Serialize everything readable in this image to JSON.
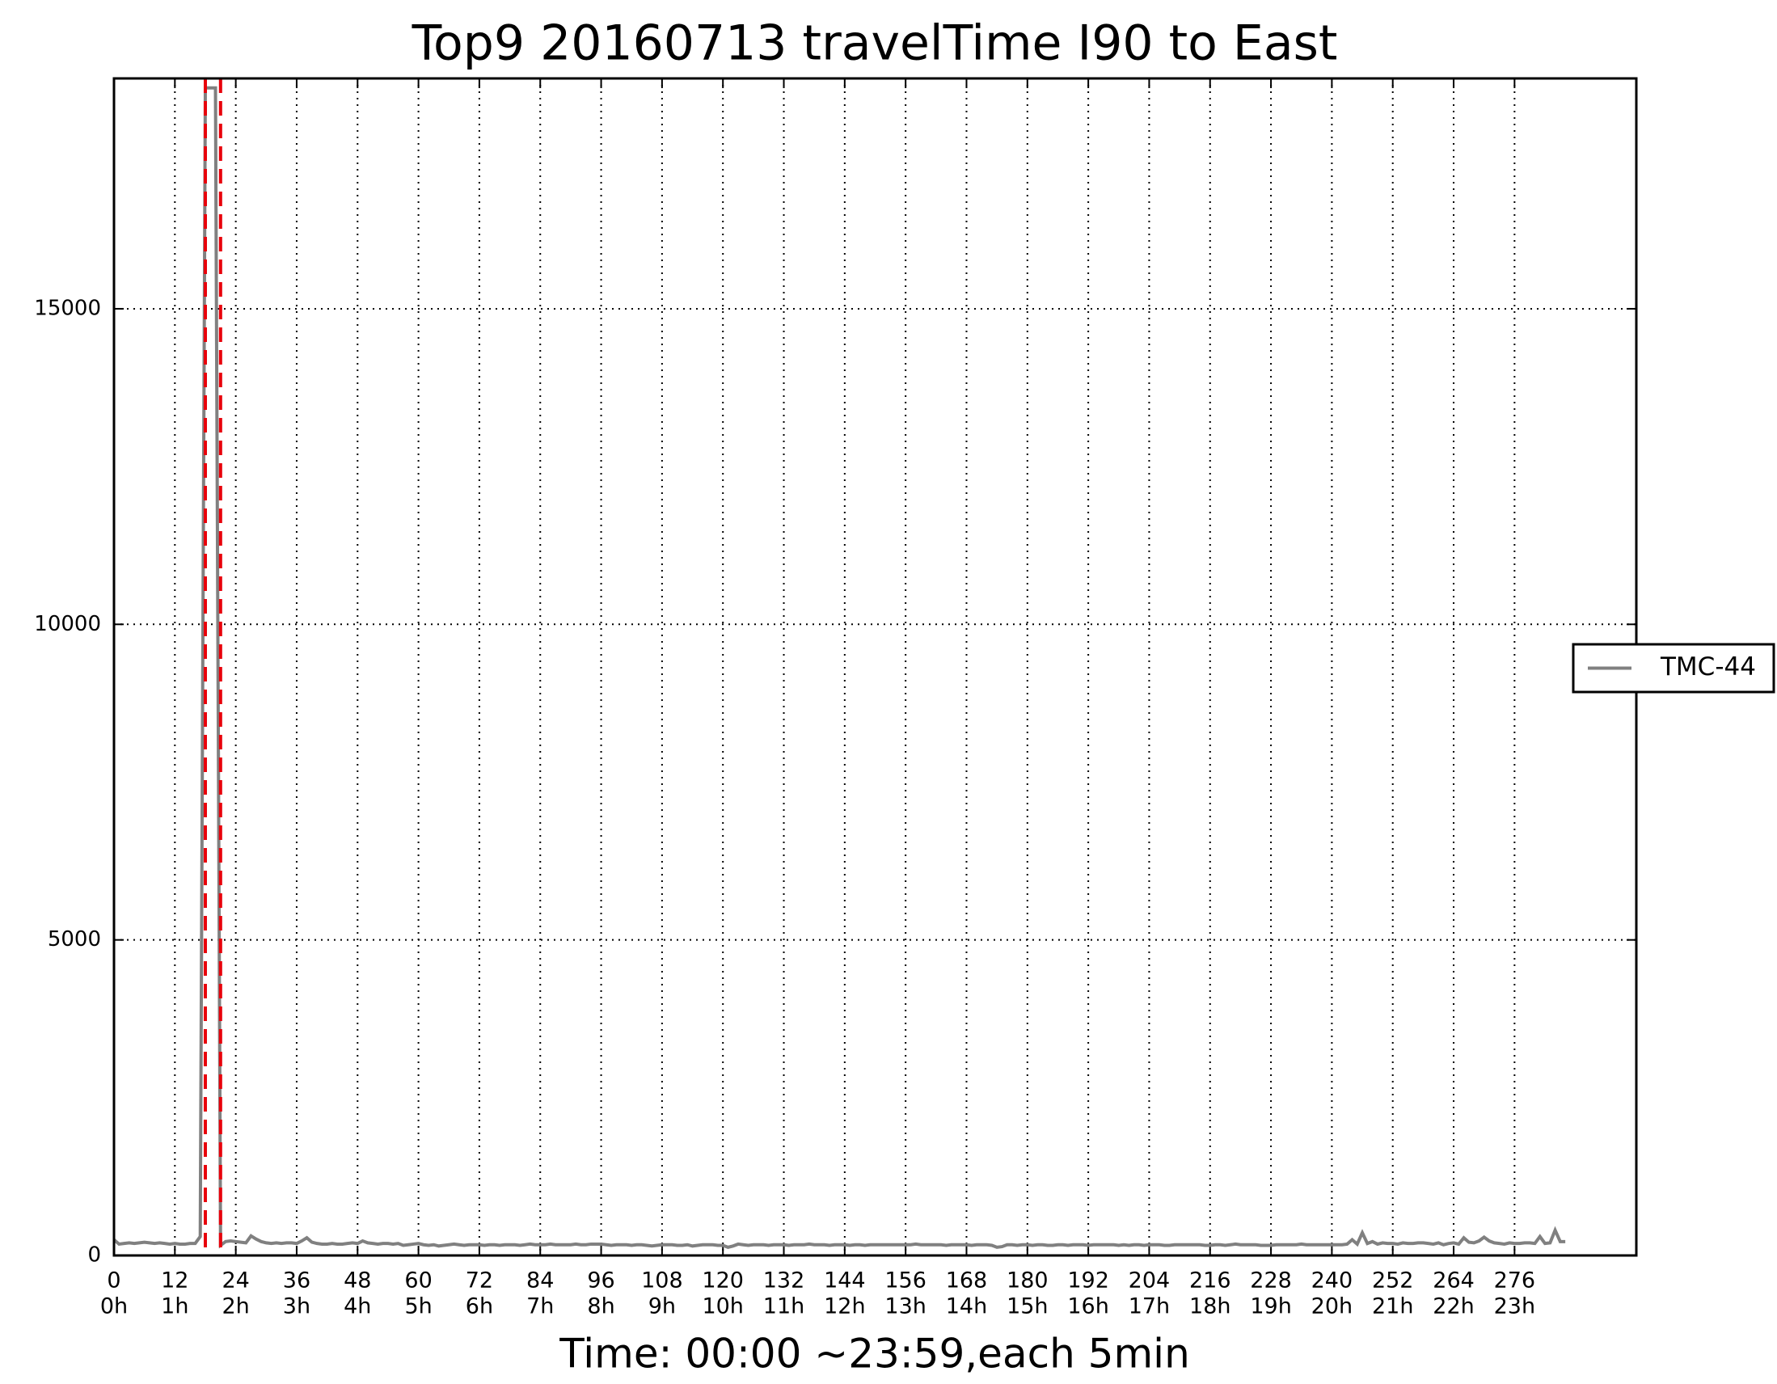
{
  "chart_data": {
    "type": "line",
    "title": "Top9 20160713 travelTime I90 to East",
    "x_label": "Time: 00:00 ~23:59,each 5min",
    "xlim": [
      0,
      300
    ],
    "ylim": [
      0,
      18650
    ],
    "xticks": [
      0,
      12,
      24,
      36,
      48,
      60,
      72,
      84,
      96,
      108,
      120,
      132,
      144,
      156,
      168,
      180,
      192,
      204,
      216,
      228,
      240,
      252,
      264,
      276
    ],
    "xtick_sublabels": [
      "0h",
      "1h",
      "2h",
      "3h",
      "4h",
      "5h",
      "6h",
      "7h",
      "8h",
      "9h",
      "10h",
      "11h",
      "12h",
      "13h",
      "14h",
      "15h",
      "16h",
      "17h",
      "18h",
      "19h",
      "20h",
      "21h",
      "22h",
      "23h"
    ],
    "yticks": [
      0,
      5000,
      10000,
      15000
    ],
    "grid": true,
    "legend": "right",
    "vlines": [
      18,
      21
    ],
    "vline_color": "#e8000b",
    "series": [
      {
        "name": "TMC-44",
        "color": "#808080",
        "values": [
          250,
          180,
          190,
          200,
          190,
          200,
          210,
          200,
          190,
          200,
          190,
          180,
          190,
          180,
          180,
          190,
          190,
          300,
          18500,
          18500,
          18500,
          160,
          220,
          230,
          220,
          210,
          200,
          310,
          260,
          220,
          200,
          190,
          200,
          190,
          200,
          200,
          190,
          230,
          280,
          210,
          190,
          180,
          180,
          190,
          180,
          180,
          190,
          200,
          190,
          230,
          200,
          190,
          180,
          190,
          190,
          180,
          190,
          160,
          170,
          180,
          190,
          170,
          160,
          170,
          150,
          160,
          170,
          180,
          170,
          160,
          170,
          170,
          170,
          160,
          170,
          170,
          160,
          170,
          170,
          170,
          160,
          170,
          180,
          170,
          170,
          170,
          180,
          170,
          170,
          170,
          170,
          180,
          170,
          170,
          180,
          180,
          180,
          170,
          160,
          170,
          170,
          170,
          160,
          170,
          170,
          160,
          150,
          160,
          170,
          170,
          170,
          160,
          160,
          170,
          150,
          160,
          170,
          170,
          170,
          160,
          160,
          130,
          150,
          180,
          170,
          160,
          170,
          170,
          170,
          160,
          170,
          170,
          170,
          160,
          170,
          170,
          170,
          180,
          170,
          170,
          170,
          160,
          170,
          170,
          170,
          160,
          170,
          170,
          160,
          170,
          170,
          170,
          170,
          170,
          170,
          170,
          170,
          170,
          180,
          170,
          170,
          170,
          170,
          170,
          160,
          170,
          170,
          170,
          170,
          160,
          170,
          170,
          170,
          160,
          130,
          140,
          170,
          170,
          160,
          170,
          170,
          160,
          170,
          170,
          160,
          160,
          170,
          170,
          160,
          170,
          170,
          170,
          160,
          170,
          170,
          170,
          170,
          170,
          160,
          170,
          160,
          170,
          170,
          160,
          170,
          170,
          170,
          160,
          160,
          170,
          170,
          170,
          170,
          170,
          170,
          160,
          160,
          170,
          170,
          160,
          170,
          180,
          170,
          170,
          170,
          170,
          160,
          160,
          160,
          170,
          170,
          170,
          170,
          170,
          180,
          170,
          170,
          170,
          170,
          170,
          170,
          170,
          170,
          180,
          250,
          180,
          360,
          190,
          220,
          180,
          200,
          190,
          190,
          180,
          200,
          190,
          190,
          200,
          200,
          190,
          180,
          200,
          170,
          190,
          200,
          180,
          280,
          210,
          200,
          230,
          290,
          230,
          200,
          190,
          180,
          200,
          190,
          190,
          200,
          200,
          190,
          300,
          190,
          200,
          400,
          220,
          220
        ]
      }
    ]
  }
}
